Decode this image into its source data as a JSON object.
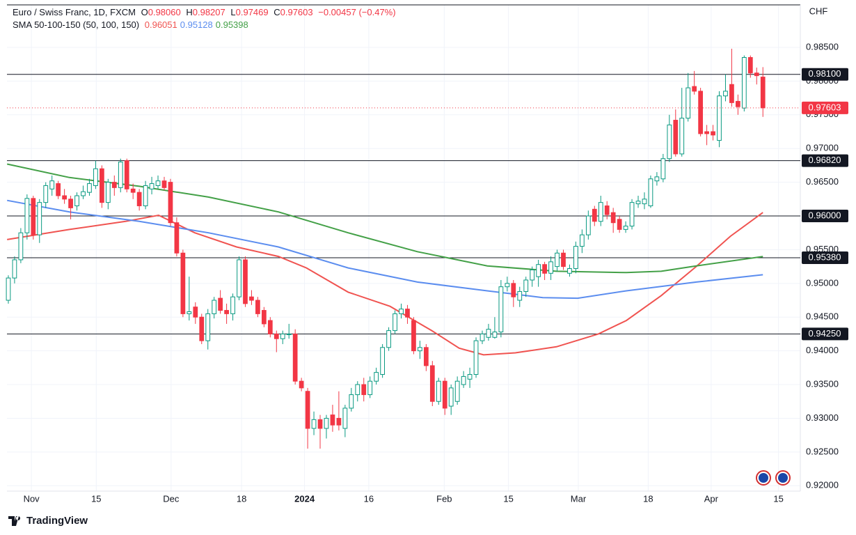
{
  "header": {
    "symbol": "Euro / Swiss Franc, 1D, FXCM",
    "o_label": "O",
    "open": "0.98060",
    "h_label": "H",
    "high": "0.98207",
    "l_label": "L",
    "low": "0.97469",
    "c_label": "C",
    "close": "0.97603",
    "change": "−0.00457 (−0.47%)",
    "indicator": "SMA 50-100-150 (50, 100, 150)"
  },
  "footer": {
    "brand": "TradingView"
  },
  "chart_data": {
    "type": "candlestick",
    "currency": "CHF",
    "up_color": "#089981",
    "down_color": "#f23645",
    "grid": true,
    "xlim": [
      -0.22,
      127
    ],
    "xticks": [
      {
        "value": 3.7,
        "label": "Nov"
      },
      {
        "value": 14.1,
        "label": "15"
      },
      {
        "value": 26.1,
        "label": "Dec"
      },
      {
        "value": 37.4,
        "label": "18"
      },
      {
        "value": 47.5,
        "label": "2024"
      },
      {
        "value": 57.8,
        "label": "16"
      },
      {
        "value": 69.9,
        "label": "Feb"
      },
      {
        "value": 80.2,
        "label": "15"
      },
      {
        "value": 91.4,
        "label": "Mar"
      },
      {
        "value": 102.6,
        "label": "18"
      },
      {
        "value": 112.7,
        "label": "Apr"
      },
      {
        "value": 123.5,
        "label": "15"
      }
    ],
    "ylim": [
      0.9192,
      0.9913
    ],
    "yticks": [
      {
        "value": 0.92,
        "label": "0.92000"
      },
      {
        "value": 0.925,
        "label": "0.92500"
      },
      {
        "value": 0.93,
        "label": "0.93000"
      },
      {
        "value": 0.935,
        "label": "0.93500"
      },
      {
        "value": 0.94,
        "label": "0.94000"
      },
      {
        "value": 0.945,
        "label": "0.94500"
      },
      {
        "value": 0.95,
        "label": "0.95000"
      },
      {
        "value": 0.955,
        "label": "0.95500"
      },
      {
        "value": 0.96,
        "label": "0.96000"
      },
      {
        "value": 0.965,
        "label": "0.96500"
      },
      {
        "value": 0.97,
        "label": "0.97000"
      },
      {
        "value": 0.975,
        "label": "0.97500"
      },
      {
        "value": 0.98,
        "label": "0.98000"
      },
      {
        "value": 0.985,
        "label": "0.98500"
      }
    ],
    "levels": [
      {
        "value": 0.981,
        "label": "0.98100"
      },
      {
        "value": 0.9682,
        "label": "0.96820"
      },
      {
        "value": 0.96,
        "label": "0.96000"
      },
      {
        "value": 0.9538,
        "label": "0.95380"
      },
      {
        "value": 0.9425,
        "label": "0.94250"
      }
    ],
    "last_price": {
      "value": 0.97603,
      "label": "0.97603"
    },
    "ohlc": [
      [
        0.9475,
        0.9512,
        0.947,
        0.9508
      ],
      [
        0.9508,
        0.954,
        0.95,
        0.9535
      ],
      [
        0.9535,
        0.9582,
        0.953,
        0.9575
      ],
      [
        0.9575,
        0.9632,
        0.9565,
        0.9626
      ],
      [
        0.9626,
        0.963,
        0.9565,
        0.9572
      ],
      [
        0.9572,
        0.9625,
        0.956,
        0.962
      ],
      [
        0.962,
        0.965,
        0.9612,
        0.9645
      ],
      [
        0.964,
        0.966,
        0.963,
        0.9652
      ],
      [
        0.9648,
        0.9652,
        0.9625,
        0.963
      ],
      [
        0.963,
        0.964,
        0.9618,
        0.9625
      ],
      [
        0.9625,
        0.963,
        0.9595,
        0.9612
      ],
      [
        0.9615,
        0.9635,
        0.9608,
        0.963
      ],
      [
        0.963,
        0.9645,
        0.9625,
        0.9636
      ],
      [
        0.9635,
        0.9655,
        0.963,
        0.9648
      ],
      [
        0.9645,
        0.9682,
        0.964,
        0.967
      ],
      [
        0.967,
        0.9675,
        0.9612,
        0.962
      ],
      [
        0.962,
        0.9655,
        0.961,
        0.965
      ],
      [
        0.965,
        0.966,
        0.963,
        0.9642
      ],
      [
        0.9642,
        0.9685,
        0.9635,
        0.968
      ],
      [
        0.9682,
        0.9685,
        0.9635,
        0.964
      ],
      [
        0.964,
        0.9648,
        0.9625,
        0.9635
      ],
      [
        0.9635,
        0.964,
        0.9608,
        0.9615
      ],
      [
        0.9615,
        0.9652,
        0.961,
        0.9645
      ],
      [
        0.964,
        0.9658,
        0.9632,
        0.9648
      ],
      [
        0.9645,
        0.966,
        0.964,
        0.9652
      ],
      [
        0.9652,
        0.9658,
        0.9638,
        0.9642
      ],
      [
        0.965,
        0.9655,
        0.9585,
        0.959
      ],
      [
        0.959,
        0.9598,
        0.954,
        0.9545
      ],
      [
        0.9545,
        0.955,
        0.945,
        0.9455
      ],
      [
        0.9455,
        0.951,
        0.9445,
        0.9458
      ],
      [
        0.9465,
        0.9472,
        0.944,
        0.945
      ],
      [
        0.945,
        0.9455,
        0.941,
        0.9415
      ],
      [
        0.9415,
        0.9462,
        0.9402,
        0.9455
      ],
      [
        0.9455,
        0.948,
        0.9448,
        0.9475
      ],
      [
        0.9478,
        0.949,
        0.9455,
        0.946
      ],
      [
        0.946,
        0.947,
        0.944,
        0.9455
      ],
      [
        0.9455,
        0.9485,
        0.9445,
        0.948
      ],
      [
        0.948,
        0.954,
        0.9475,
        0.9535
      ],
      [
        0.9535,
        0.954,
        0.9465,
        0.947
      ],
      [
        0.948,
        0.949,
        0.9468,
        0.9475
      ],
      [
        0.9475,
        0.948,
        0.945,
        0.9455
      ],
      [
        0.946,
        0.9465,
        0.9435,
        0.944
      ],
      [
        0.9445,
        0.945,
        0.942,
        0.9425
      ],
      [
        0.9425,
        0.943,
        0.9398,
        0.9418
      ],
      [
        0.9418,
        0.943,
        0.941,
        0.9425
      ],
      [
        0.9425,
        0.944,
        0.9418,
        0.9425
      ],
      [
        0.9425,
        0.9432,
        0.935,
        0.9355
      ],
      [
        0.9355,
        0.936,
        0.934,
        0.9345
      ],
      [
        0.934,
        0.9345,
        0.9255,
        0.9285
      ],
      [
        0.9285,
        0.931,
        0.9275,
        0.9298
      ],
      [
        0.9298,
        0.9305,
        0.9255,
        0.9285
      ],
      [
        0.9285,
        0.9305,
        0.927,
        0.93
      ],
      [
        0.9305,
        0.932,
        0.928,
        0.929
      ],
      [
        0.93,
        0.934,
        0.9282,
        0.929
      ],
      [
        0.9285,
        0.932,
        0.9272,
        0.9315
      ],
      [
        0.9315,
        0.9345,
        0.931,
        0.9335
      ],
      [
        0.9335,
        0.9355,
        0.9325,
        0.935
      ],
      [
        0.935,
        0.936,
        0.9325,
        0.9335
      ],
      [
        0.9335,
        0.9362,
        0.933,
        0.9355
      ],
      [
        0.9355,
        0.9375,
        0.935,
        0.9368
      ],
      [
        0.9365,
        0.941,
        0.936,
        0.9405
      ],
      [
        0.9405,
        0.9435,
        0.94,
        0.943
      ],
      [
        0.943,
        0.946,
        0.9425,
        0.9455
      ],
      [
        0.9455,
        0.947,
        0.9448,
        0.9462
      ],
      [
        0.9462,
        0.9468,
        0.944,
        0.945
      ],
      [
        0.9445,
        0.945,
        0.9395,
        0.94
      ],
      [
        0.94,
        0.9415,
        0.9388,
        0.9405
      ],
      [
        0.9405,
        0.941,
        0.937,
        0.9378
      ],
      [
        0.9378,
        0.9385,
        0.9318,
        0.9325
      ],
      [
        0.9325,
        0.936,
        0.932,
        0.9355
      ],
      [
        0.9355,
        0.936,
        0.9305,
        0.9315
      ],
      [
        0.9318,
        0.935,
        0.9305,
        0.9345
      ],
      [
        0.9325,
        0.9362,
        0.932,
        0.9355
      ],
      [
        0.935,
        0.937,
        0.9345,
        0.9362
      ],
      [
        0.9358,
        0.9375,
        0.9345,
        0.9365
      ],
      [
        0.9365,
        0.942,
        0.936,
        0.9415
      ],
      [
        0.9415,
        0.943,
        0.941,
        0.9425
      ],
      [
        0.942,
        0.944,
        0.9415,
        0.9432
      ],
      [
        0.942,
        0.945,
        0.9418,
        0.9428
      ],
      [
        0.9428,
        0.9505,
        0.942,
        0.9495
      ],
      [
        0.9495,
        0.951,
        0.9488,
        0.95
      ],
      [
        0.95,
        0.9505,
        0.9465,
        0.948
      ],
      [
        0.9475,
        0.9495,
        0.9465,
        0.9488
      ],
      [
        0.9488,
        0.951,
        0.948,
        0.9505
      ],
      [
        0.9505,
        0.9525,
        0.9495,
        0.952
      ],
      [
        0.951,
        0.9535,
        0.9495,
        0.9528
      ],
      [
        0.9528,
        0.9532,
        0.9505,
        0.9515
      ],
      [
        0.9515,
        0.954,
        0.9505,
        0.9532
      ],
      [
        0.9525,
        0.955,
        0.9518,
        0.9545
      ],
      [
        0.9545,
        0.955,
        0.952,
        0.9525
      ],
      [
        0.9515,
        0.9528,
        0.951,
        0.9522
      ],
      [
        0.9522,
        0.9562,
        0.9515,
        0.9555
      ],
      [
        0.9555,
        0.958,
        0.9545,
        0.9572
      ],
      [
        0.9572,
        0.9608,
        0.9565,
        0.96
      ],
      [
        0.961,
        0.9615,
        0.9585,
        0.9592
      ],
      [
        0.9592,
        0.963,
        0.9585,
        0.962
      ],
      [
        0.9615,
        0.9622,
        0.9595,
        0.9602
      ],
      [
        0.9605,
        0.9612,
        0.9575,
        0.959
      ],
      [
        0.9595,
        0.96,
        0.9575,
        0.958
      ],
      [
        0.958,
        0.9592,
        0.9575,
        0.9585
      ],
      [
        0.9585,
        0.9625,
        0.958,
        0.962
      ],
      [
        0.9618,
        0.963,
        0.9612,
        0.9622
      ],
      [
        0.9618,
        0.9635,
        0.961,
        0.9625
      ],
      [
        0.9615,
        0.966,
        0.9612,
        0.9655
      ],
      [
        0.9652,
        0.9665,
        0.9645,
        0.9658
      ],
      [
        0.9655,
        0.9692,
        0.965,
        0.9685
      ],
      [
        0.9685,
        0.975,
        0.968,
        0.9735
      ],
      [
        0.9742,
        0.9758,
        0.9688,
        0.9692
      ],
      [
        0.9692,
        0.979,
        0.9688,
        0.9745
      ],
      [
        0.9745,
        0.9812,
        0.974,
        0.979
      ],
      [
        0.9792,
        0.9815,
        0.978,
        0.9785
      ],
      [
        0.9785,
        0.979,
        0.9718,
        0.9722
      ],
      [
        0.9725,
        0.9735,
        0.9705,
        0.9722
      ],
      [
        0.9725,
        0.9735,
        0.9712,
        0.972
      ],
      [
        0.9712,
        0.9785,
        0.9702,
        0.9778
      ],
      [
        0.9778,
        0.981,
        0.977,
        0.9785
      ],
      [
        0.9795,
        0.9848,
        0.9762,
        0.9768
      ],
      [
        0.977,
        0.978,
        0.975,
        0.9762
      ],
      [
        0.976,
        0.9838,
        0.9755,
        0.9835
      ],
      [
        0.9835,
        0.9838,
        0.9805,
        0.9812
      ],
      [
        0.9812,
        0.982,
        0.9795,
        0.9808
      ],
      [
        0.9806,
        0.98207,
        0.97469,
        0.97603
      ]
    ],
    "series": [
      {
        "color": "#f05350",
        "value_label": "0.96051",
        "x": [
          -0.2,
          9.8,
          18.8,
          24.1,
          29.9,
          36.6,
          43.3,
          47.8,
          54.5,
          61.2,
          67.9,
          72.3,
          76.2,
          81.3,
          87.9,
          94.6,
          99.1,
          104.7,
          110.3,
          115.8,
          121
        ],
        "values": [
          0.9565,
          0.958,
          0.9592,
          0.9601,
          0.9575,
          0.9554,
          0.954,
          0.9523,
          0.9487,
          0.9466,
          0.943,
          0.9404,
          0.9394,
          0.9397,
          0.9406,
          0.9425,
          0.9445,
          0.9482,
          0.9525,
          0.957,
          0.96051
        ]
      },
      {
        "color": "#5b8def",
        "value_label": "0.95128",
        "x": [
          -0.2,
          9.8,
          21,
          32.1,
          43.3,
          54.5,
          65.6,
          76.8,
          85.7,
          91.3,
          99.1,
          110.3,
          121
        ],
        "values": [
          0.9623,
          0.9606,
          0.9592,
          0.9575,
          0.9554,
          0.9523,
          0.9502,
          0.9489,
          0.9479,
          0.9478,
          0.9489,
          0.9502,
          0.95128
        ]
      },
      {
        "color": "#43a047",
        "value_label": "0.95398",
        "x": [
          -0.2,
          9.8,
          21,
          32.1,
          43.3,
          54.5,
          65.6,
          76.8,
          87.9,
          99.1,
          104.7,
          110.3,
          121
        ],
        "values": [
          0.9677,
          0.9657,
          0.9644,
          0.9628,
          0.9606,
          0.9575,
          0.9547,
          0.9526,
          0.9518,
          0.9516,
          0.9518,
          0.9526,
          0.95398
        ]
      }
    ]
  }
}
